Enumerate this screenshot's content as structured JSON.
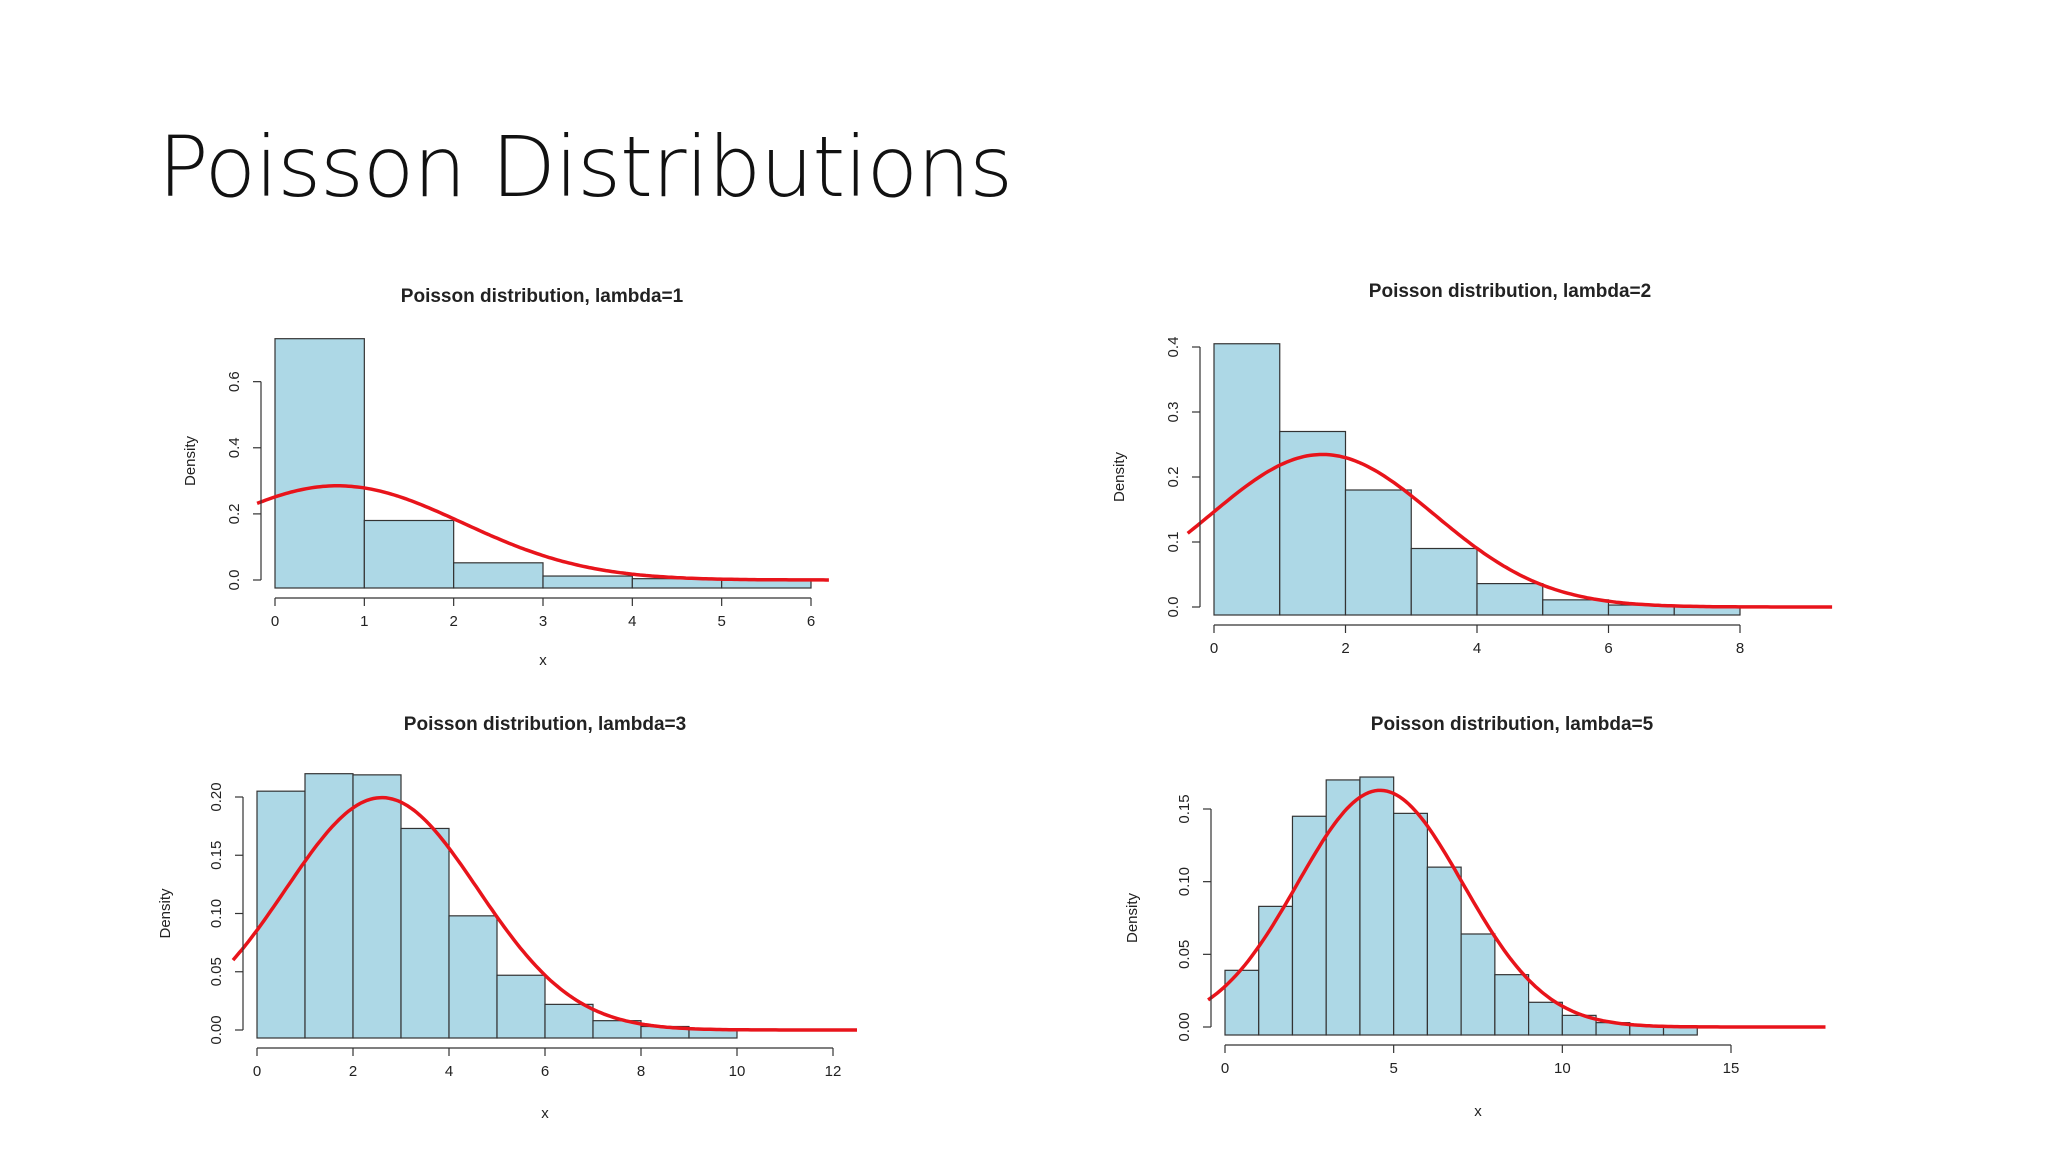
{
  "slide": {
    "title": "Poisson Distributions"
  },
  "colors": {
    "bar_fill": "#add8e6",
    "bar_stroke": "#333333",
    "curve": "#e8141b",
    "axis": "#333333"
  },
  "chart_data": [
    {
      "type": "bar",
      "title": "Poisson distribution, lambda=1",
      "xlabel": "x",
      "ylabel": "Density",
      "x_ticks": [
        "0",
        "1",
        "2",
        "3",
        "4",
        "5",
        "6"
      ],
      "y_ticks": [
        "0.0",
        "0.2",
        "0.4",
        "0.6"
      ],
      "xlim": [
        0,
        6
      ],
      "ylim": [
        0,
        0.72
      ],
      "bins": [
        [
          0,
          1
        ],
        [
          1,
          2
        ],
        [
          2,
          3
        ],
        [
          3,
          4
        ],
        [
          4,
          5
        ],
        [
          5,
          6
        ]
      ],
      "values": [
        0.73,
        0.18,
        0.052,
        0.012,
        0.004,
        0.001
      ],
      "curve": {
        "mean": 0.7,
        "sd": 1.4,
        "x_range": [
          -0.2,
          6.2
        ]
      }
    },
    {
      "type": "bar",
      "title": "Poisson distribution, lambda=2",
      "xlabel": "",
      "ylabel": "Density",
      "x_ticks": [
        "0",
        "2",
        "4",
        "6",
        "8"
      ],
      "y_ticks": [
        "0.0",
        "0.1",
        "0.2",
        "0.3",
        "0.4"
      ],
      "xlim": [
        0,
        8
      ],
      "ylim": [
        0,
        0.4
      ],
      "bins": [
        [
          0,
          1
        ],
        [
          1,
          2
        ],
        [
          2,
          3
        ],
        [
          3,
          4
        ],
        [
          4,
          5
        ],
        [
          5,
          6
        ],
        [
          6,
          7
        ],
        [
          7,
          8
        ]
      ],
      "values": [
        0.405,
        0.27,
        0.18,
        0.09,
        0.036,
        0.011,
        0.003,
        0.001
      ],
      "curve": {
        "mean": 1.65,
        "sd": 1.7,
        "x_range": [
          -0.4,
          9.4
        ]
      }
    },
    {
      "type": "bar",
      "title": "Poisson distribution, lambda=3",
      "xlabel": "x",
      "ylabel": "Density",
      "x_ticks": [
        "0",
        "2",
        "4",
        "6",
        "8",
        "10",
        "12"
      ],
      "y_ticks": [
        "0.00",
        "0.05",
        "0.10",
        "0.15",
        "0.20"
      ],
      "xlim": [
        0,
        12
      ],
      "ylim": [
        0,
        0.2
      ],
      "bins": [
        [
          0,
          1
        ],
        [
          1,
          2
        ],
        [
          2,
          3
        ],
        [
          3,
          4
        ],
        [
          4,
          5
        ],
        [
          5,
          6
        ],
        [
          6,
          7
        ],
        [
          7,
          8
        ],
        [
          8,
          9
        ],
        [
          9,
          10
        ]
      ],
      "values": [
        0.205,
        0.22,
        0.219,
        0.173,
        0.098,
        0.047,
        0.022,
        0.008,
        0.003,
        0.001
      ],
      "curve": {
        "mean": 2.6,
        "sd": 2.0,
        "x_range": [
          -0.5,
          12.5
        ]
      }
    },
    {
      "type": "bar",
      "title": "Poisson distribution, lambda=5",
      "xlabel": "x",
      "ylabel": "Density",
      "x_ticks": [
        "0",
        "5",
        "10",
        "15"
      ],
      "y_ticks": [
        "0.00",
        "0.05",
        "0.10",
        "0.15"
      ],
      "xlim": [
        0,
        15
      ],
      "ylim": [
        0,
        0.15
      ],
      "bins": [
        [
          0,
          1
        ],
        [
          1,
          2
        ],
        [
          2,
          3
        ],
        [
          3,
          4
        ],
        [
          4,
          5
        ],
        [
          5,
          6
        ],
        [
          6,
          7
        ],
        [
          7,
          8
        ],
        [
          8,
          9
        ],
        [
          9,
          10
        ],
        [
          10,
          11
        ],
        [
          11,
          12
        ],
        [
          12,
          13
        ],
        [
          13,
          14
        ]
      ],
      "values": [
        0.039,
        0.083,
        0.145,
        0.17,
        0.172,
        0.147,
        0.11,
        0.064,
        0.036,
        0.017,
        0.008,
        0.003,
        0.001,
        0.0005
      ],
      "curve": {
        "mean": 4.6,
        "sd": 2.45,
        "x_range": [
          -0.5,
          17.8
        ]
      }
    }
  ]
}
